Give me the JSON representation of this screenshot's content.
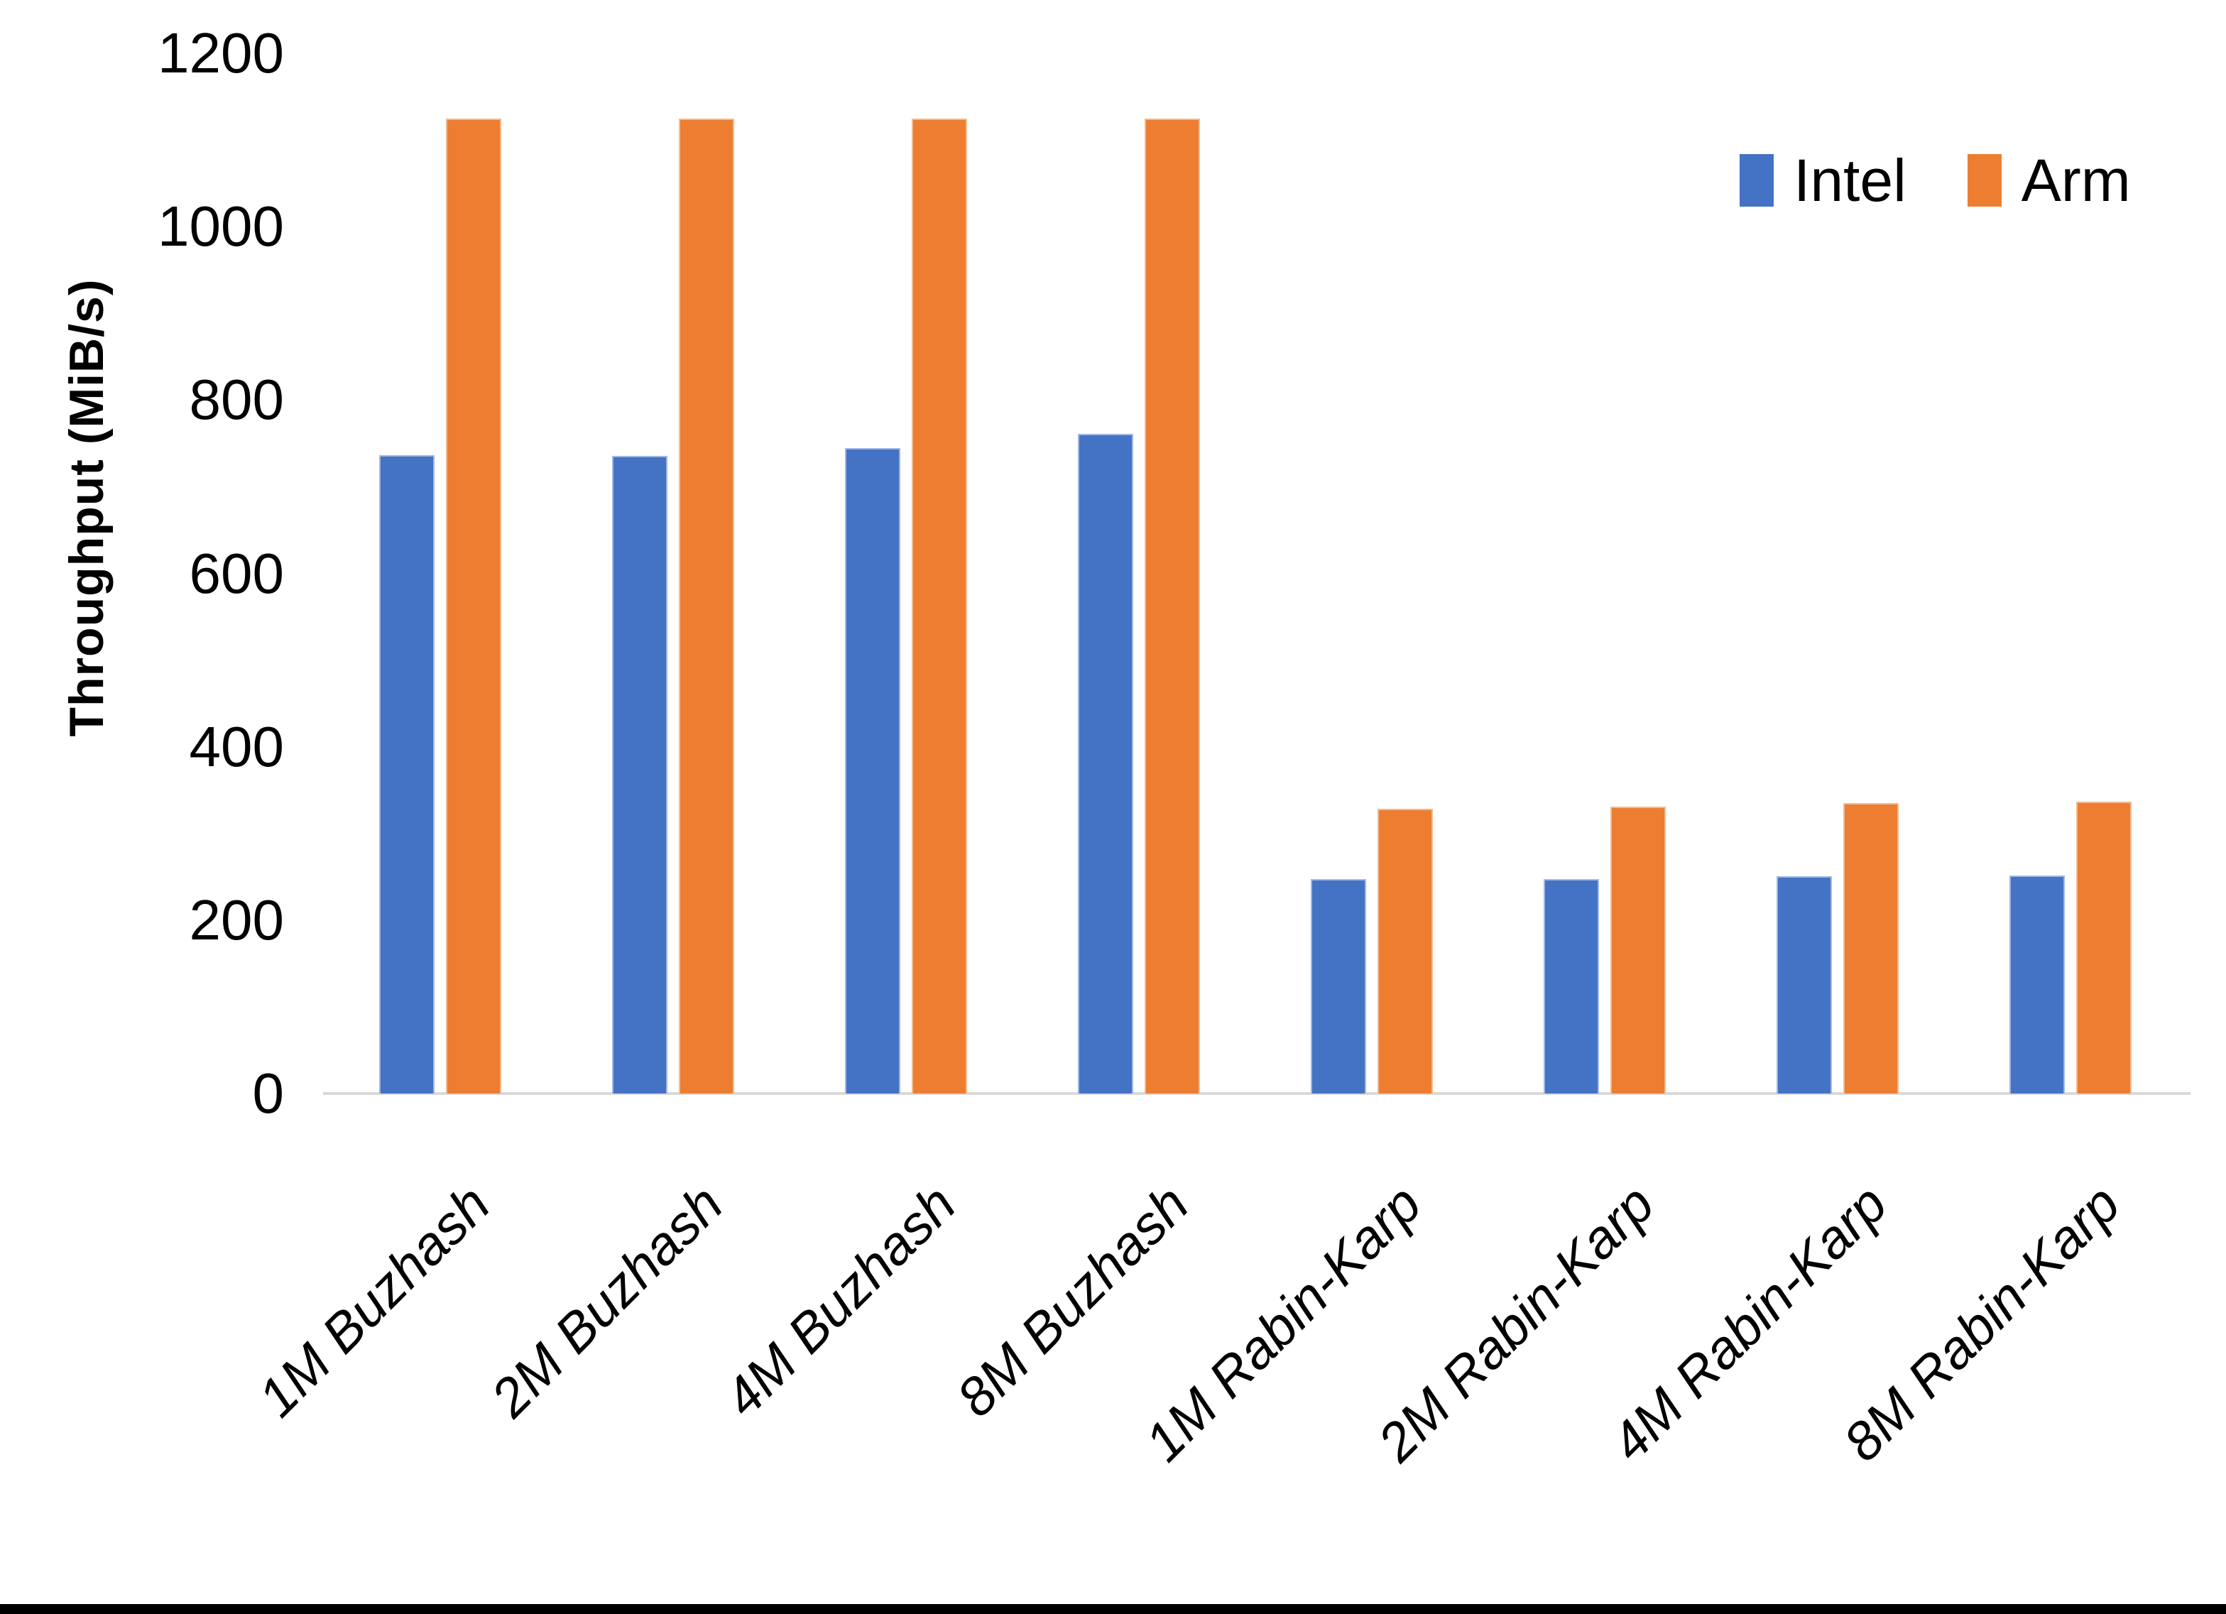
{
  "chart_data": {
    "type": "bar",
    "title": "",
    "ylabel": "Throughput (MiB/s)",
    "xlabel": "",
    "categories": [
      "1M Buzhash",
      "2M Buzhash",
      "4M Buzhash",
      "8M Buzhash",
      "1M Rabin-Karp",
      "2M Rabin-Karp",
      "4M Rabin-Karp",
      "8M Rabin-Karp"
    ],
    "series": [
      {
        "name": "Intel",
        "color": "#4472C4",
        "values": [
          735,
          734,
          743,
          759,
          246,
          246,
          249,
          250
        ]
      },
      {
        "name": "Arm",
        "color": "#ED7D31",
        "values": [
          1123,
          1123,
          1123,
          1123,
          327,
          329,
          333,
          335
        ]
      }
    ],
    "ylim": [
      0,
      1200
    ],
    "yticks": [
      0,
      200,
      400,
      600,
      800,
      1000,
      1200
    ],
    "grid": false,
    "legend_position": "top-right",
    "axis_line_color": "#d9d9d9",
    "bottom_edge_color": "#000000"
  }
}
